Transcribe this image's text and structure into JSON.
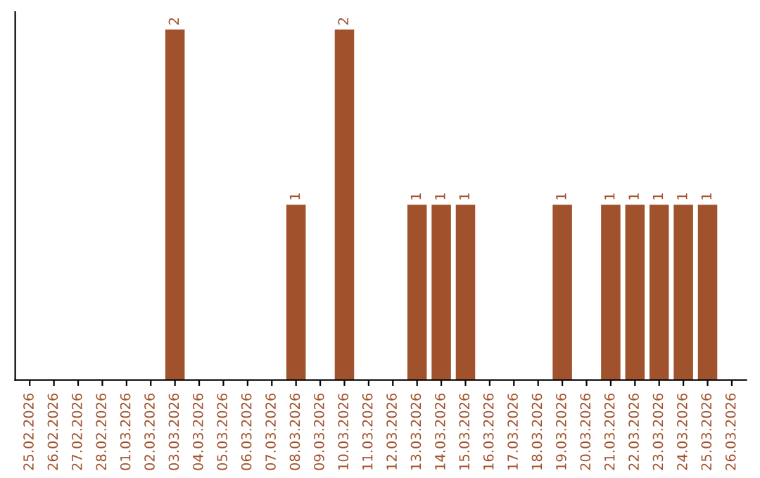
{
  "chart_data": {
    "type": "bar",
    "categories": [
      "25.02.2026",
      "26.02.2026",
      "27.02.2026",
      "28.02.2026",
      "01.03.2026",
      "02.03.2026",
      "03.03.2026",
      "04.03.2026",
      "05.03.2026",
      "06.03.2026",
      "07.03.2026",
      "08.03.2026",
      "09.03.2026",
      "10.03.2026",
      "11.03.2026",
      "12.03.2026",
      "13.03.2026",
      "14.03.2026",
      "15.03.2026",
      "16.03.2026",
      "17.03.2026",
      "18.03.2026",
      "19.03.2026",
      "20.03.2026",
      "21.03.2026",
      "22.03.2026",
      "23.03.2026",
      "24.03.2026",
      "25.03.2026",
      "26.03.2026"
    ],
    "values": [
      0,
      0,
      0,
      0,
      0,
      0,
      2,
      0,
      0,
      0,
      0,
      1,
      0,
      2,
      0,
      0,
      1,
      1,
      1,
      0,
      0,
      0,
      1,
      0,
      1,
      1,
      1,
      1,
      1,
      0
    ],
    "value_labels": [
      null,
      null,
      null,
      null,
      null,
      null,
      "2",
      null,
      null,
      null,
      null,
      "1",
      null,
      "2",
      null,
      null,
      "1",
      "1",
      "1",
      null,
      null,
      null,
      "1",
      null,
      "1",
      "1",
      "1",
      "1",
      "1",
      null
    ],
    "color": "#a0522d",
    "tick_labels": "x",
    "grid": false,
    "legend": false
  }
}
